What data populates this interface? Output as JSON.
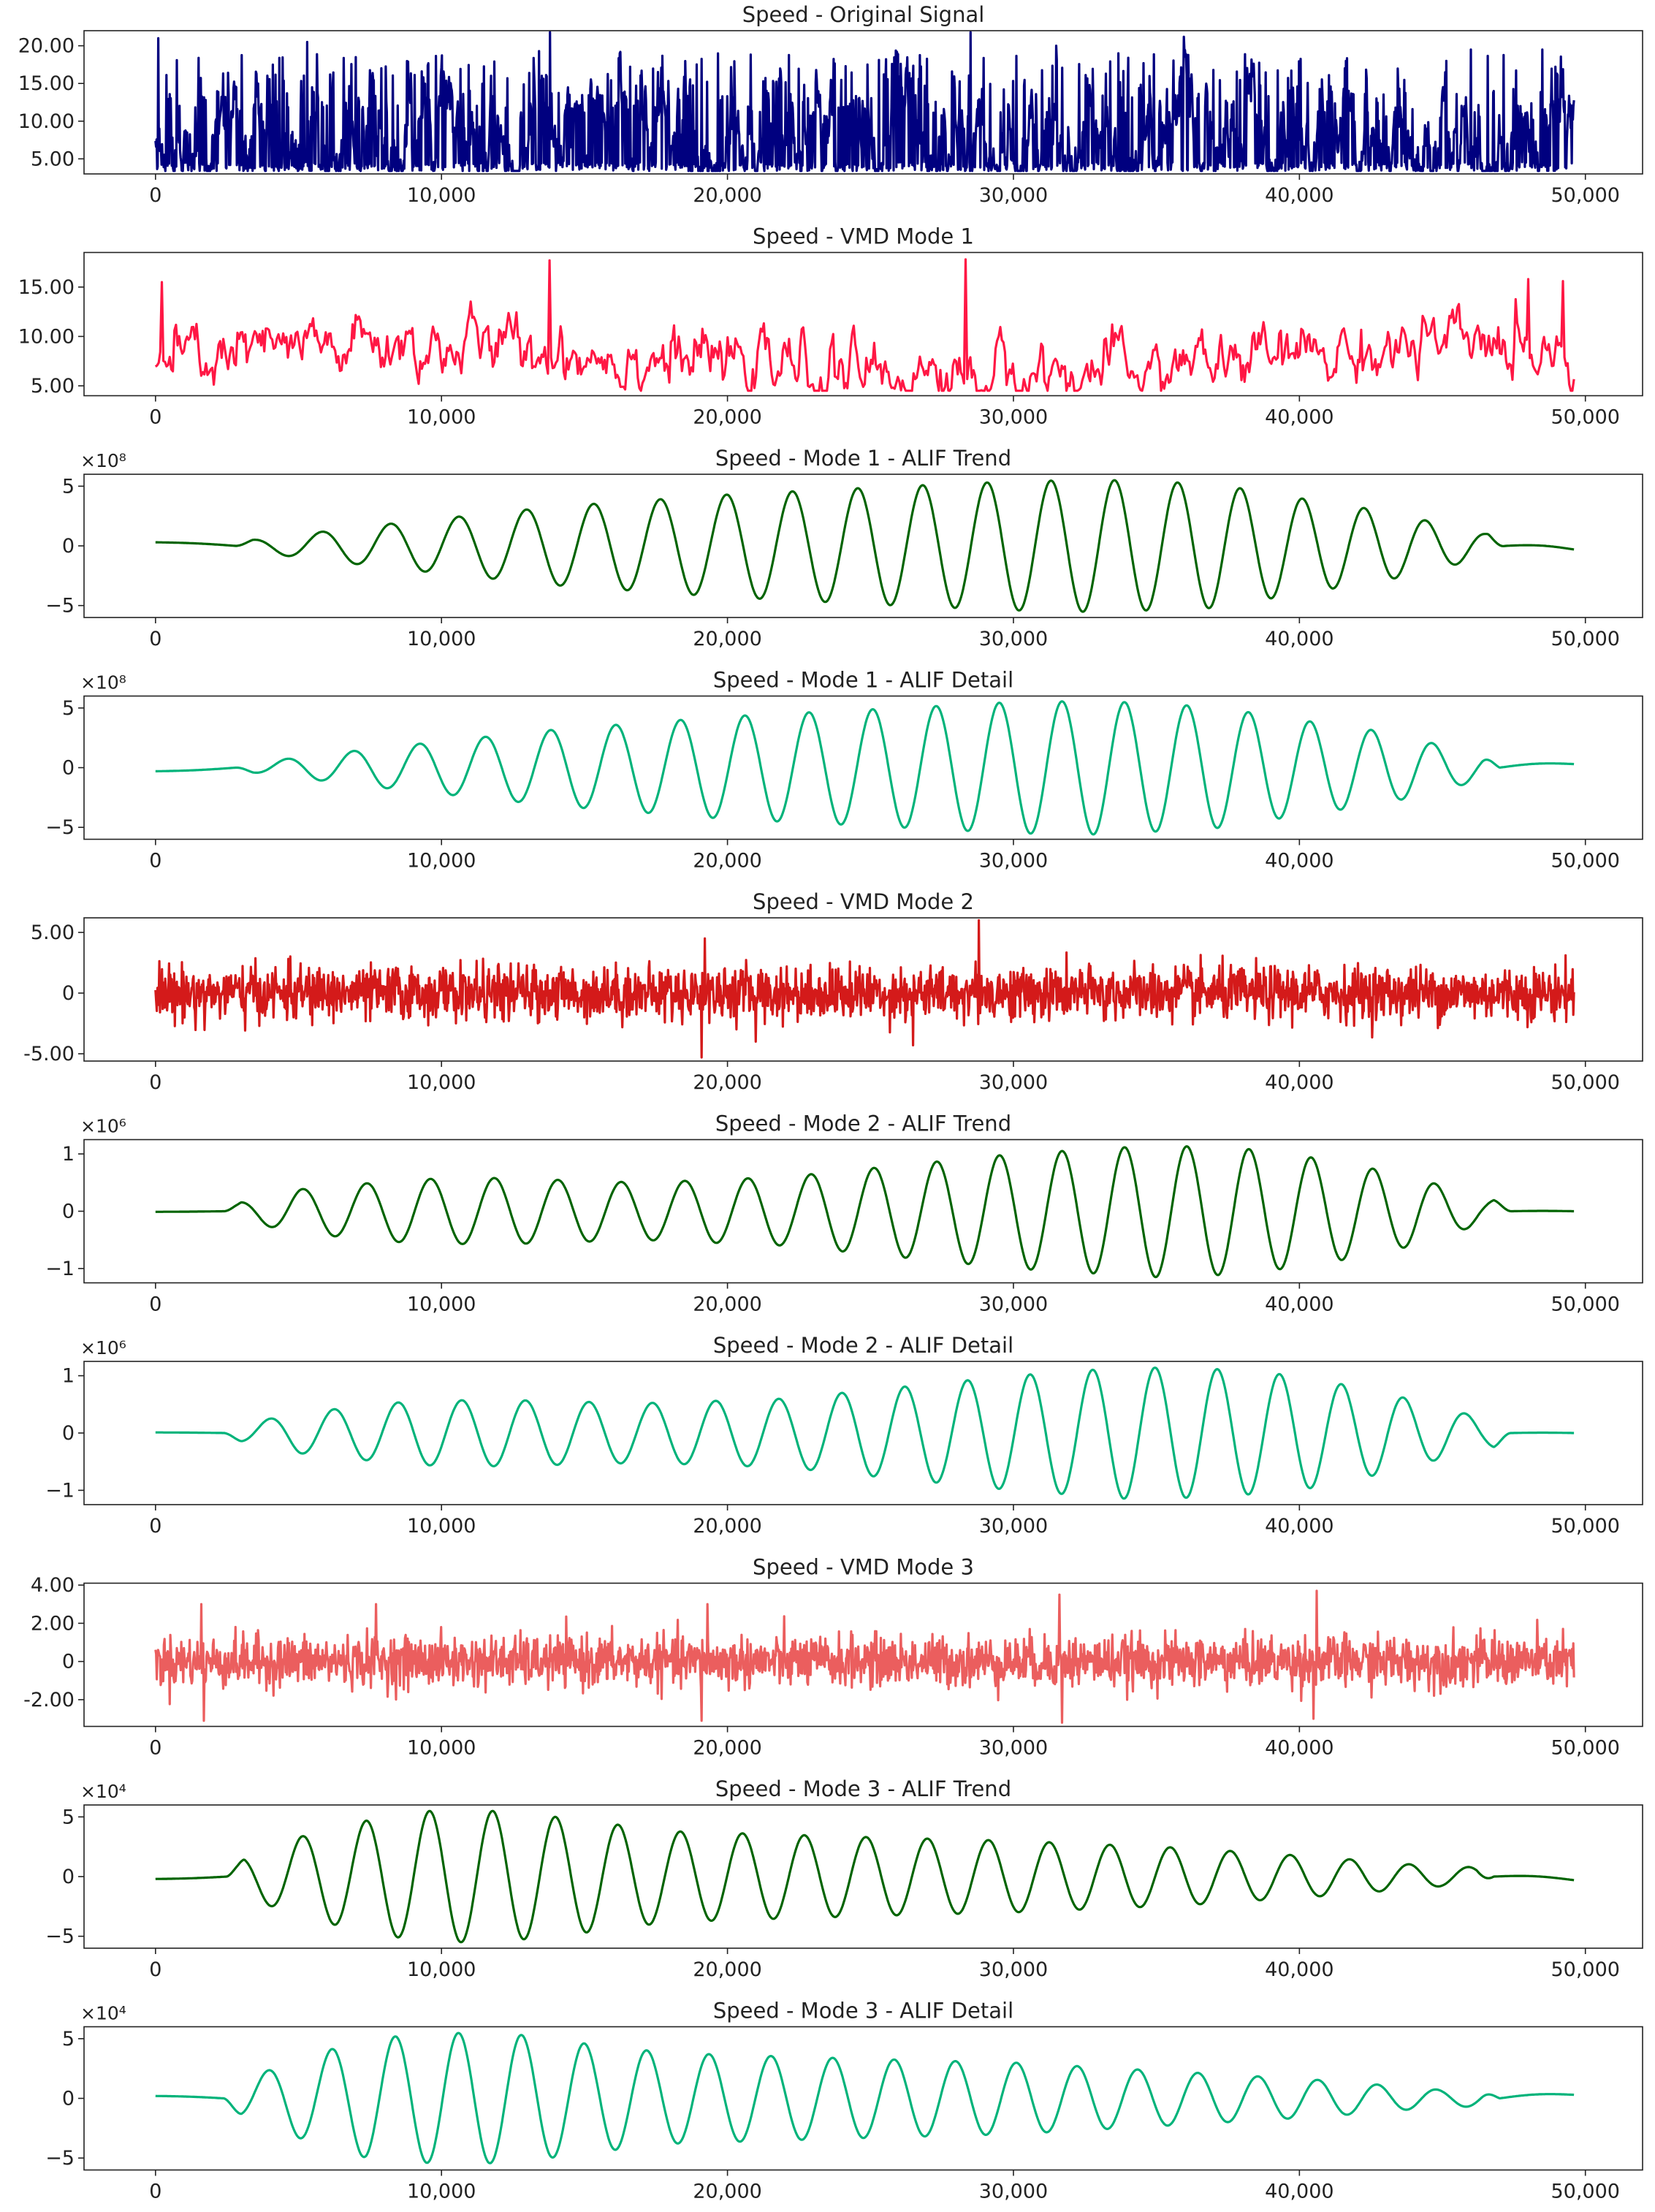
{
  "figure": {
    "background": "#ffffff",
    "frame_color": "#222222"
  },
  "chart_data": [
    {
      "type": "line",
      "title": "Speed - Original Signal",
      "color": "#00007f",
      "xlim": [
        -2500,
        52000
      ],
      "ylim": [
        3.0,
        22.0
      ],
      "x_ticks": [
        0,
        10000,
        20000,
        30000,
        40000,
        50000
      ],
      "x_tick_labels": [
        "0",
        "10,000",
        "20,000",
        "30,000",
        "40,000",
        "50,000"
      ],
      "y_ticks": [
        5,
        10,
        15,
        20
      ],
      "y_tick_labels": [
        "5.00",
        "10.00",
        "15.00",
        "20.00"
      ],
      "offset_label": "",
      "x": [
        0,
        49600
      ],
      "signal": {
        "kind": "spiky_positive",
        "base": 3.4,
        "typical": 8.0,
        "peaks": [
          {
            "x": 100,
            "y": 21.0
          },
          {
            "x": 5300,
            "y": 20.5
          },
          {
            "x": 13800,
            "y": 21.8
          },
          {
            "x": 28500,
            "y": 21.8
          },
          {
            "x": 31500,
            "y": 20.0
          },
          {
            "x": 46000,
            "y": 19.5
          },
          {
            "x": 48500,
            "y": 19.5
          }
        ]
      }
    },
    {
      "type": "line",
      "title": "Speed - VMD Mode 1",
      "color": "#ff1744",
      "xlim": [
        -2500,
        52000
      ],
      "ylim": [
        4.0,
        18.5
      ],
      "x_ticks": [
        0,
        10000,
        20000,
        30000,
        40000,
        50000
      ],
      "x_tick_labels": [
        "0",
        "10,000",
        "20,000",
        "30,000",
        "40,000",
        "50,000"
      ],
      "y_ticks": [
        5,
        10,
        15
      ],
      "y_tick_labels": [
        "5.00",
        "10.00",
        "15.00"
      ],
      "offset_label": "",
      "x": [
        0,
        49600
      ],
      "signal": {
        "kind": "smooth_random",
        "base": 7.5,
        "min": 4.5,
        "max": 17.8,
        "peaks": [
          {
            "x": 200,
            "y": 15.5
          },
          {
            "x": 13800,
            "y": 17.7
          },
          {
            "x": 28300,
            "y": 17.8
          },
          {
            "x": 48000,
            "y": 15.8
          },
          {
            "x": 49200,
            "y": 15.6
          }
        ]
      }
    },
    {
      "type": "line",
      "title": "Speed - Mode 1 - ALIF Trend",
      "color": "#006400",
      "xlim": [
        -2500,
        52000
      ],
      "ylim": [
        -600000000,
        600000000
      ],
      "x_ticks": [
        0,
        10000,
        20000,
        30000,
        40000,
        50000
      ],
      "x_tick_labels": [
        "0",
        "10,000",
        "20,000",
        "30,000",
        "40,000",
        "50,000"
      ],
      "y_ticks": [
        -500000000,
        0,
        500000000
      ],
      "y_tick_labels": [
        "−5",
        "0",
        "5"
      ],
      "offset_label": "×10⁸",
      "x": [
        0,
        49600
      ],
      "signal": {
        "kind": "chirp_envelope",
        "start_value": 30000000,
        "end_value": -30000000,
        "active_from": 2800,
        "active_to": 47200,
        "first_peak": 3400,
        "period_start": 2450,
        "period_end": 2100,
        "envelope": [
          {
            "x": 3400,
            "a": 50000000
          },
          {
            "x": 8000,
            "a": 180000000
          },
          {
            "x": 14000,
            "a": 330000000
          },
          {
            "x": 20000,
            "a": 430000000
          },
          {
            "x": 26000,
            "a": 500000000
          },
          {
            "x": 30000,
            "a": 540000000
          },
          {
            "x": 33000,
            "a": 555000000
          },
          {
            "x": 37000,
            "a": 520000000
          },
          {
            "x": 40000,
            "a": 400000000
          },
          {
            "x": 43000,
            "a": 290000000
          },
          {
            "x": 46500,
            "a": 100000000
          }
        ]
      }
    },
    {
      "type": "line",
      "title": "Speed - Mode 1 - ALIF Detail",
      "color": "#00b37a",
      "xlim": [
        -2500,
        52000
      ],
      "ylim": [
        -600000000,
        600000000
      ],
      "x_ticks": [
        0,
        10000,
        20000,
        30000,
        40000,
        50000
      ],
      "x_tick_labels": [
        "0",
        "10,000",
        "20,000",
        "30,000",
        "40,000",
        "50,000"
      ],
      "y_ticks": [
        -500000000,
        0,
        500000000
      ],
      "y_tick_labels": [
        "−5",
        "0",
        "5"
      ],
      "offset_label": "×10⁸",
      "x": [
        0,
        49600
      ],
      "signal": {
        "kind": "chirp_envelope",
        "start_value": -30000000,
        "end_value": 30000000,
        "active_from": 2800,
        "active_to": 47000,
        "first_peak": 4600,
        "period_start": 2350,
        "period_end": 2100,
        "envelope": [
          {
            "x": 3400,
            "a": 40000000
          },
          {
            "x": 8000,
            "a": 170000000
          },
          {
            "x": 14000,
            "a": 320000000
          },
          {
            "x": 20000,
            "a": 430000000
          },
          {
            "x": 26000,
            "a": 500000000
          },
          {
            "x": 30000,
            "a": 550000000
          },
          {
            "x": 33000,
            "a": 560000000
          },
          {
            "x": 37000,
            "a": 510000000
          },
          {
            "x": 40000,
            "a": 400000000
          },
          {
            "x": 43000,
            "a": 300000000
          },
          {
            "x": 46300,
            "a": 110000000
          }
        ]
      }
    },
    {
      "type": "line",
      "title": "Speed - VMD Mode 2",
      "color": "#d41a1a",
      "xlim": [
        -2500,
        52000
      ],
      "ylim": [
        -5.6,
        6.2
      ],
      "x_ticks": [
        0,
        10000,
        20000,
        30000,
        40000,
        50000
      ],
      "x_tick_labels": [
        "0",
        "10,000",
        "20,000",
        "30,000",
        "40,000",
        "50,000"
      ],
      "y_ticks": [
        -5,
        0,
        5
      ],
      "y_tick_labels": [
        "-5.00",
        "0",
        "5.00"
      ],
      "offset_label": "",
      "x": [
        0,
        49600
      ],
      "signal": {
        "kind": "noise",
        "typical_amplitude": 2.0,
        "spikes": [
          {
            "x": 19100,
            "y": -5.3
          },
          {
            "x": 19200,
            "y": 4.5
          },
          {
            "x": 28800,
            "y": 6.0
          },
          {
            "x": 21000,
            "y": -4.0
          },
          {
            "x": 26500,
            "y": -4.3
          }
        ]
      }
    },
    {
      "type": "line",
      "title": "Speed - Mode 2 - ALIF Trend",
      "color": "#006400",
      "xlim": [
        -2500,
        52000
      ],
      "ylim": [
        -1250000,
        1250000
      ],
      "x_ticks": [
        0,
        10000,
        20000,
        30000,
        40000,
        50000
      ],
      "x_tick_labels": [
        "0",
        "10,000",
        "20,000",
        "30,000",
        "40,000",
        "50,000"
      ],
      "y_ticks": [
        -1000000,
        0,
        1000000
      ],
      "y_tick_labels": [
        "−1",
        "0",
        "1"
      ],
      "offset_label": "×10⁶",
      "x": [
        0,
        49600
      ],
      "signal": {
        "kind": "chirp_envelope",
        "start_value": -10000,
        "end_value": 0,
        "active_from": 2400,
        "active_to": 47400,
        "first_peak": 2900,
        "period_start": 2250,
        "period_end": 2150,
        "envelope": [
          {
            "x": 2900,
            "a": 150000
          },
          {
            "x": 5000,
            "a": 380000
          },
          {
            "x": 9000,
            "a": 560000
          },
          {
            "x": 12000,
            "a": 580000
          },
          {
            "x": 17000,
            "a": 500000
          },
          {
            "x": 22000,
            "a": 600000
          },
          {
            "x": 26000,
            "a": 800000
          },
          {
            "x": 30000,
            "a": 1000000
          },
          {
            "x": 35000,
            "a": 1150000
          },
          {
            "x": 38000,
            "a": 1100000
          },
          {
            "x": 41000,
            "a": 900000
          },
          {
            "x": 44000,
            "a": 600000
          },
          {
            "x": 46500,
            "a": 200000
          }
        ]
      }
    },
    {
      "type": "line",
      "title": "Speed - Mode 2 - ALIF Detail",
      "color": "#00b37a",
      "xlim": [
        -2500,
        52000
      ],
      "ylim": [
        -1250000,
        1250000
      ],
      "x_ticks": [
        0,
        10000,
        20000,
        30000,
        40000,
        50000
      ],
      "x_tick_labels": [
        "0",
        "10,000",
        "20,000",
        "30,000",
        "40,000",
        "50,000"
      ],
      "y_ticks": [
        -1000000,
        0,
        1000000
      ],
      "y_tick_labels": [
        "−1",
        "0",
        "1"
      ],
      "offset_label": "×10⁶",
      "x": [
        0,
        49600
      ],
      "signal": {
        "kind": "chirp_envelope",
        "start_value": 10000,
        "end_value": 0,
        "active_from": 2400,
        "active_to": 47400,
        "first_peak": 4000,
        "period_start": 2250,
        "period_end": 2150,
        "envelope": [
          {
            "x": 3000,
            "a": 150000
          },
          {
            "x": 5000,
            "a": 350000
          },
          {
            "x": 9000,
            "a": 560000
          },
          {
            "x": 12000,
            "a": 580000
          },
          {
            "x": 17000,
            "a": 520000
          },
          {
            "x": 22000,
            "a": 600000
          },
          {
            "x": 26000,
            "a": 800000
          },
          {
            "x": 30000,
            "a": 1000000
          },
          {
            "x": 34000,
            "a": 1150000
          },
          {
            "x": 37000,
            "a": 1120000
          },
          {
            "x": 40000,
            "a": 1000000
          },
          {
            "x": 43000,
            "a": 700000
          },
          {
            "x": 46500,
            "a": 250000
          }
        ]
      }
    },
    {
      "type": "line",
      "title": "Speed - VMD Mode 3",
      "color": "#eb5e5e",
      "xlim": [
        -2500,
        52000
      ],
      "ylim": [
        -3.4,
        4.1
      ],
      "x_ticks": [
        0,
        10000,
        20000,
        30000,
        40000,
        50000
      ],
      "x_tick_labels": [
        "0",
        "10,000",
        "20,000",
        "30,000",
        "40,000",
        "50,000"
      ],
      "y_ticks": [
        -2,
        0,
        2,
        4
      ],
      "y_tick_labels": [
        "-2.00",
        "0",
        "2.00",
        "4.00"
      ],
      "offset_label": "",
      "x": [
        0,
        49600
      ],
      "signal": {
        "kind": "noise",
        "typical_amplitude": 1.2,
        "spikes": [
          {
            "x": 1600,
            "y": 3.0
          },
          {
            "x": 1700,
            "y": -3.1
          },
          {
            "x": 7700,
            "y": 3.0
          },
          {
            "x": 19100,
            "y": -3.1
          },
          {
            "x": 19300,
            "y": 3.0
          },
          {
            "x": 31600,
            "y": 3.5
          },
          {
            "x": 31700,
            "y": -3.2
          },
          {
            "x": 40600,
            "y": 3.7
          },
          {
            "x": 40500,
            "y": -3.0
          }
        ]
      }
    },
    {
      "type": "line",
      "title": "Speed - Mode 3 - ALIF Trend",
      "color": "#006400",
      "xlim": [
        -2500,
        52000
      ],
      "ylim": [
        -60000,
        60000
      ],
      "x_ticks": [
        0,
        10000,
        20000,
        30000,
        40000,
        50000
      ],
      "x_tick_labels": [
        "0",
        "10,000",
        "20,000",
        "30,000",
        "40,000",
        "50,000"
      ],
      "y_ticks": [
        -50000,
        0,
        50000
      ],
      "y_tick_labels": [
        "−5",
        "0",
        "5"
      ],
      "offset_label": "×10⁴",
      "x": [
        0,
        49600
      ],
      "signal": {
        "kind": "chirp_envelope",
        "start_value": -2000,
        "end_value": -3000,
        "active_from": 2500,
        "active_to": 46800,
        "first_peak": 2900,
        "period_start": 2250,
        "period_end": 2050,
        "envelope": [
          {
            "x": 2900,
            "a": 15000
          },
          {
            "x": 5000,
            "a": 33000
          },
          {
            "x": 7400,
            "a": 47000
          },
          {
            "x": 9600,
            "a": 55000
          },
          {
            "x": 11800,
            "a": 55000
          },
          {
            "x": 14000,
            "a": 50000
          },
          {
            "x": 18000,
            "a": 38000
          },
          {
            "x": 25000,
            "a": 33000
          },
          {
            "x": 30000,
            "a": 30000
          },
          {
            "x": 36000,
            "a": 24000
          },
          {
            "x": 41000,
            "a": 16000
          },
          {
            "x": 45000,
            "a": 8000
          }
        ]
      }
    },
    {
      "type": "line",
      "title": "Speed - Mode 3 - ALIF Detail",
      "color": "#00b37a",
      "xlim": [
        -2500,
        52000
      ],
      "ylim": [
        -60000,
        60000
      ],
      "x_ticks": [
        0,
        10000,
        20000,
        30000,
        40000,
        50000
      ],
      "x_tick_labels": [
        "0",
        "10,000",
        "20,000",
        "30,000",
        "40,000",
        "50,000"
      ],
      "y_ticks": [
        -50000,
        0,
        50000
      ],
      "y_tick_labels": [
        "−5",
        "0",
        "5"
      ],
      "offset_label": "×10⁴",
      "x": [
        0,
        49600
      ],
      "signal": {
        "kind": "chirp_envelope",
        "start_value": 2000,
        "end_value": 3000,
        "active_from": 2400,
        "active_to": 47000,
        "first_peak": 3900,
        "period_start": 2250,
        "period_end": 2050,
        "envelope": [
          {
            "x": 3000,
            "a": 15000
          },
          {
            "x": 5000,
            "a": 33000
          },
          {
            "x": 7400,
            "a": 50000
          },
          {
            "x": 10000,
            "a": 55000
          },
          {
            "x": 12500,
            "a": 54000
          },
          {
            "x": 15000,
            "a": 46000
          },
          {
            "x": 18000,
            "a": 38000
          },
          {
            "x": 25000,
            "a": 33000
          },
          {
            "x": 30000,
            "a": 30000
          },
          {
            "x": 36000,
            "a": 22000
          },
          {
            "x": 41000,
            "a": 15000
          },
          {
            "x": 45000,
            "a": 7000
          }
        ]
      }
    }
  ]
}
